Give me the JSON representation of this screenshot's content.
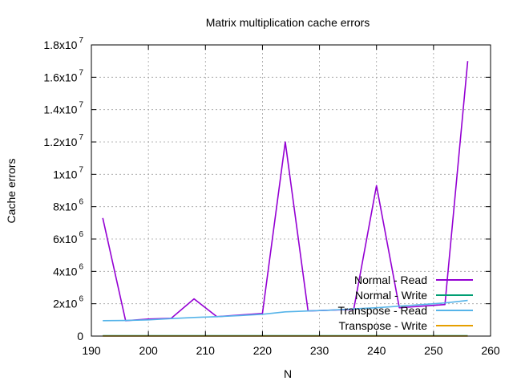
{
  "chart_data": {
    "type": "line",
    "title": "Matrix multiplication cache errors",
    "xlabel": "N",
    "ylabel": "Cache errors",
    "xlim": [
      190,
      260
    ],
    "ylim": [
      0,
      18000000
    ],
    "grid": true,
    "legend_position": "bottom-right",
    "x_ticks": [
      {
        "value": 190,
        "label": "190"
      },
      {
        "value": 200,
        "label": "200"
      },
      {
        "value": 210,
        "label": "210"
      },
      {
        "value": 220,
        "label": "220"
      },
      {
        "value": 230,
        "label": "230"
      },
      {
        "value": 240,
        "label": "240"
      },
      {
        "value": 250,
        "label": "250"
      },
      {
        "value": 260,
        "label": "260"
      }
    ],
    "y_ticks": [
      {
        "value": 0,
        "mantissa": "0",
        "exp": ""
      },
      {
        "value": 2000000,
        "mantissa": "2x10",
        "exp": "6"
      },
      {
        "value": 4000000,
        "mantissa": "4x10",
        "exp": "6"
      },
      {
        "value": 6000000,
        "mantissa": "6x10",
        "exp": "6"
      },
      {
        "value": 8000000,
        "mantissa": "8x10",
        "exp": "6"
      },
      {
        "value": 10000000,
        "mantissa": "1x10",
        "exp": "7"
      },
      {
        "value": 12000000,
        "mantissa": "1.2x10",
        "exp": "7"
      },
      {
        "value": 14000000,
        "mantissa": "1.4x10",
        "exp": "7"
      },
      {
        "value": 16000000,
        "mantissa": "1.6x10",
        "exp": "7"
      },
      {
        "value": 18000000,
        "mantissa": "1.8x10",
        "exp": "7"
      }
    ],
    "x": [
      192,
      196,
      200,
      204,
      208,
      212,
      216,
      220,
      224,
      228,
      232,
      236,
      240,
      244,
      248,
      252,
      256
    ],
    "series": [
      {
        "name": "Normal - Read",
        "color": "#9400d3",
        "values": [
          7300000,
          950000,
          1050000,
          1100000,
          2300000,
          1200000,
          1300000,
          1400000,
          12000000,
          1550000,
          1600000,
          1650000,
          9300000,
          1750000,
          1850000,
          1950000,
          17000000
        ]
      },
      {
        "name": "Normal - Write",
        "color": "#009e73",
        "values": [
          20000,
          20000,
          20000,
          20000,
          20000,
          20000,
          20000,
          20000,
          20000,
          20000,
          20000,
          20000,
          20000,
          20000,
          20000,
          20000,
          20000
        ]
      },
      {
        "name": "Transpose - Read",
        "color": "#56b4e9",
        "values": [
          950000,
          960000,
          1000000,
          1080000,
          1150000,
          1200000,
          1270000,
          1350000,
          1500000,
          1550000,
          1600000,
          1680000,
          1750000,
          1850000,
          1950000,
          2050000,
          2200000
        ]
      },
      {
        "name": "Transpose - Write",
        "color": "#e69f00",
        "values": [
          5000,
          5000,
          5000,
          5000,
          5000,
          5000,
          5000,
          5000,
          5000,
          5000,
          5000,
          5000,
          5000,
          5000,
          5000,
          5000,
          5000
        ]
      }
    ]
  }
}
